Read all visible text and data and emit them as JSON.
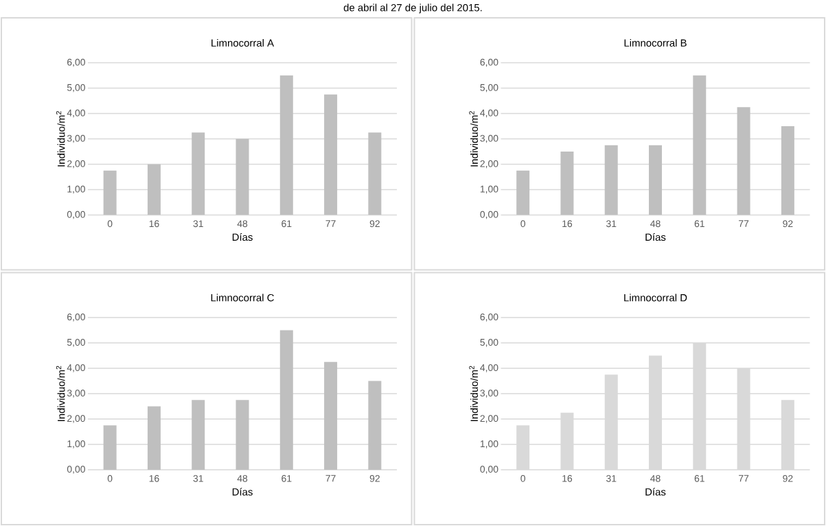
{
  "chart_data": [
    {
      "type": "bar",
      "title": "Limnocorral A",
      "annotations": [
        "de abril al 27 de julio del 2015."
      ],
      "xlabel": "Días",
      "ylabel": "Individuo/m$^{2}$",
      "categories": [
        "0",
        "16",
        "31",
        "48",
        "61",
        "77",
        "92"
      ],
      "values": [
        1.75,
        2,
        3.25,
        3,
        5.5,
        4.75,
        3.25
      ],
      "color": "#bfbfbf",
      "ylim": [
        0,
        6
      ],
      "yticks": [
        {
          "value": 0,
          "label": "0,00"
        },
        {
          "value": 1,
          "label": "1,00"
        },
        {
          "value": 2,
          "label": "2,00"
        },
        {
          "value": 3,
          "label": "3,00"
        },
        {
          "value": 4,
          "label": "4,00"
        },
        {
          "value": 5,
          "label": "5,00"
        },
        {
          "value": 6,
          "label": "6,00"
        }
      ],
      "grid": "y"
    },
    {
      "type": "bar",
      "title": "Limnocorral B",
      "xlabel": "Días",
      "ylabel": "Individuo/m$^{2}$",
      "categories": [
        "0",
        "16",
        "31",
        "48",
        "61",
        "77",
        "92"
      ],
      "values": [
        1.75,
        2.5,
        2.75,
        2.75,
        5.5,
        4.25,
        3.5
      ],
      "color": "#bfbfbf",
      "ylim": [
        0,
        6
      ],
      "yticks": [
        {
          "value": 0,
          "label": "0,00"
        },
        {
          "value": 1,
          "label": "1,00"
        },
        {
          "value": 2,
          "label": "2,00"
        },
        {
          "value": 3,
          "label": "3,00"
        },
        {
          "value": 4,
          "label": "4,00"
        },
        {
          "value": 5,
          "label": "5,00"
        },
        {
          "value": 6,
          "label": "6,00"
        }
      ],
      "grid": "y"
    },
    {
      "type": "bar",
      "title": "Limnocorral C",
      "xlabel": "Días",
      "ylabel": "Individuo/m$^{2}$",
      "categories": [
        "0",
        "16",
        "31",
        "48",
        "61",
        "77",
        "92"
      ],
      "values": [
        1.75,
        2.5,
        2.75,
        2.75,
        5.5,
        4.25,
        3.5
      ],
      "color": "#bfbfbf",
      "ylim": [
        0,
        6
      ],
      "yticks": [
        {
          "value": 0,
          "label": "0,00"
        },
        {
          "value": 1,
          "label": "1,00"
        },
        {
          "value": 2,
          "label": "2,00"
        },
        {
          "value": 3,
          "label": "3,00"
        },
        {
          "value": 4,
          "label": "4,00"
        },
        {
          "value": 5,
          "label": "5,00"
        },
        {
          "value": 6,
          "label": "6,00"
        }
      ],
      "grid": "y"
    },
    {
      "type": "bar",
      "title": "Limnocorral D",
      "xlabel": "Días",
      "ylabel": "Individuo/m$^{2}$",
      "categories": [
        "0",
        "16",
        "31",
        "48",
        "61",
        "77",
        "92"
      ],
      "values": [
        1.75,
        2.25,
        3.75,
        4.5,
        5,
        4,
        2.75
      ],
      "color": "#d9d9d9",
      "ylim": [
        0,
        6
      ],
      "yticks": [
        {
          "value": 0,
          "label": "0,00"
        },
        {
          "value": 1,
          "label": "1,00"
        },
        {
          "value": 2,
          "label": "2,00"
        },
        {
          "value": 3,
          "label": "3,00"
        },
        {
          "value": 4,
          "label": "4,00"
        },
        {
          "value": 5,
          "label": "5,00"
        },
        {
          "value": 6,
          "label": "6,00"
        }
      ],
      "grid": "y"
    }
  ]
}
